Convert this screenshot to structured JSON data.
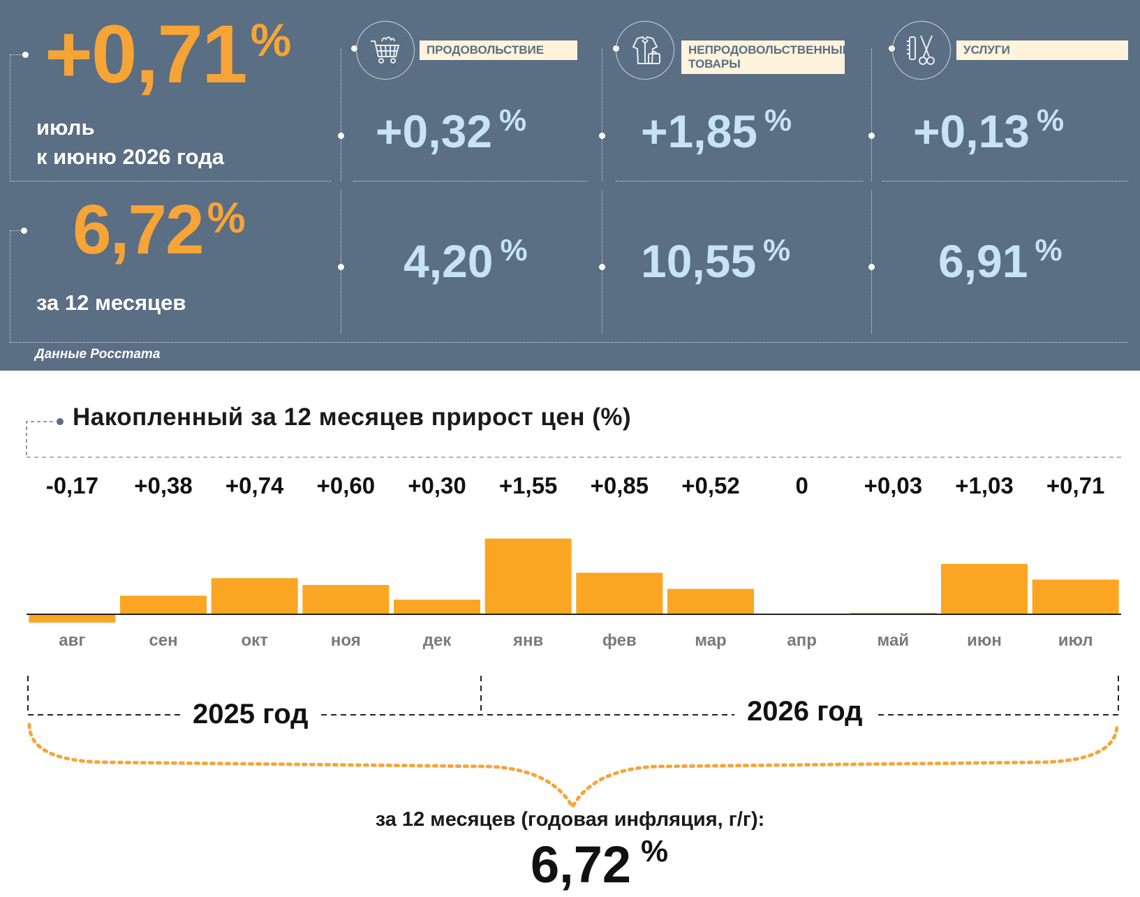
{
  "summary": {
    "monthly_value": "+0,71",
    "monthly_pct": "%",
    "monthly_caption_line1": "июль",
    "monthly_caption_line2": "к июню 2026 года",
    "annual_value": "6,72",
    "annual_pct": "%",
    "annual_caption": "за 12 месяцев",
    "source": "Данные Росстата"
  },
  "categories": [
    {
      "label": "ПРОДОВОЛЬСТВИЕ",
      "icon": "shopping-cart-icon",
      "monthly": "+0,32",
      "annual": "4,20",
      "pct": "%"
    },
    {
      "label_line1": "НЕПРОДОВОЛЬСТВЕННЫЕ",
      "label_line2": "ТОВАРЫ",
      "icon": "clothing-icon",
      "monthly": "+1,85",
      "annual": "10,55",
      "pct": "%"
    },
    {
      "label": "УСЛУГИ",
      "icon": "scissors-comb-icon",
      "monthly": "+0,13",
      "annual": "6,91",
      "pct": "%"
    }
  ],
  "chart_data": {
    "type": "bar",
    "title": "Накопленный за 12 месяцев прирост цен (%)",
    "categories": [
      "авг",
      "сен",
      "окт",
      "ноя",
      "дек",
      "янв",
      "фев",
      "мар",
      "апр",
      "май",
      "июн",
      "июл"
    ],
    "values": [
      -0.17,
      0.38,
      0.74,
      0.6,
      0.3,
      1.55,
      0.85,
      0.52,
      0,
      0.03,
      1.03,
      0.71
    ],
    "value_labels": [
      "-0,17",
      "+0,38",
      "+0,74",
      "+0,60",
      "+0,30",
      "+1,55",
      "+0,85",
      "+0,52",
      "0",
      "+0,03",
      "+1,03",
      "+0,71"
    ],
    "year_groups": [
      "2025 год",
      "2026 год"
    ],
    "bar_color": "#fba623",
    "grid": false
  },
  "bottom": {
    "caption": "за 12 месяцев (годовая инфляция, г/г):",
    "value": "6,72",
    "pct": "%"
  },
  "colors": {
    "panel": "#5a6e84",
    "orange": "#f7a437",
    "light_blue": "#c6e4f5"
  }
}
